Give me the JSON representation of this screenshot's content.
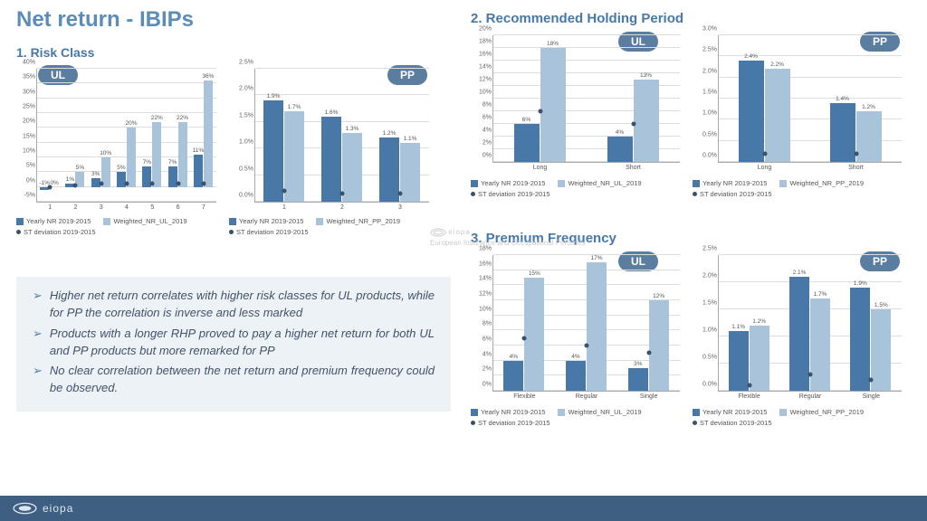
{
  "title": "Net return - IBIPs",
  "sections": {
    "s1": {
      "title": "1. Risk Class"
    },
    "s2": {
      "title": "2. Recommended Holding Period"
    },
    "s3": {
      "title": "3. Premium Frequency"
    }
  },
  "badges": {
    "ul": "UL",
    "pp": "PP"
  },
  "legend_labels": {
    "yearly": "Yearly NR 2019-2015",
    "wul": "Weighted_NR_UL_2019",
    "wpp": "Weighted_NR_PP_2019",
    "std": "ST deviation 2019-2015"
  },
  "colors": {
    "bar1": "#4878a8",
    "bar2": "#a9c3da",
    "dot": "#3a506b",
    "grid": "#dddddd",
    "neg": "#4878a8"
  },
  "chart_risk_ul": {
    "ymin": -5,
    "ymax": 40,
    "ytick": 5,
    "yfmt": "int%",
    "categories": [
      "1",
      "2",
      "3",
      "4",
      "5",
      "6",
      "7"
    ],
    "series1": [
      -1,
      1,
      3,
      5,
      7,
      7,
      11
    ],
    "series2": [
      0,
      5,
      10,
      20,
      22,
      22,
      36
    ],
    "stdev": [
      0,
      0.5,
      1,
      1,
      1,
      1,
      1
    ],
    "labels1": [
      "-1%",
      "1%",
      "3%",
      "5%",
      "7%",
      "7%",
      "11%"
    ],
    "labels2": [
      "0%",
      "5%",
      "10%",
      "20%",
      "22%",
      "22%",
      "36%"
    ]
  },
  "chart_risk_pp": {
    "ymin": 0,
    "ymax": 2.5,
    "ytick": 0.5,
    "yfmt": "dec%",
    "categories": [
      "1",
      "2",
      "3"
    ],
    "series1": [
      1.9,
      1.6,
      1.2
    ],
    "series2": [
      1.7,
      1.3,
      1.1
    ],
    "stdev": [
      0.2,
      0.15,
      0.15
    ],
    "labels1": [
      "1.9%",
      "1.6%",
      "1.2%"
    ],
    "labels2": [
      "1.7%",
      "1.3%",
      "1.1%"
    ]
  },
  "chart_rhp_ul": {
    "ymin": 0,
    "ymax": 20,
    "ytick": 2,
    "yfmt": "int%",
    "categories": [
      "Long",
      "Short"
    ],
    "series1": [
      6,
      4
    ],
    "series2": [
      18,
      13
    ],
    "stdev": [
      8,
      6
    ],
    "labels1": [
      "6%",
      "4%"
    ],
    "labels2": [
      "18%",
      "13%"
    ]
  },
  "chart_rhp_pp": {
    "ymin": 0,
    "ymax": 3.0,
    "ytick": 0.5,
    "yfmt": "dec%",
    "categories": [
      "Long",
      "Short"
    ],
    "series1": [
      2.4,
      1.4
    ],
    "series2": [
      2.2,
      1.2
    ],
    "stdev": [
      0.2,
      0.2
    ],
    "labels1": [
      "2.4%",
      "1.4%"
    ],
    "labels2": [
      "2.2%",
      "1.2%"
    ]
  },
  "chart_pf_ul": {
    "ymin": 0,
    "ymax": 18,
    "ytick": 2,
    "yfmt": "int%",
    "categories": [
      "Flexible",
      "Regular",
      "Single"
    ],
    "series1": [
      4,
      4,
      3
    ],
    "series2": [
      15,
      17,
      12
    ],
    "stdev": [
      7,
      6,
      5
    ],
    "labels1": [
      "4%",
      "4%",
      "3%"
    ],
    "labels2": [
      "15%",
      "17%",
      "12%"
    ]
  },
  "chart_pf_pp": {
    "ymin": 0,
    "ymax": 2.5,
    "ytick": 0.5,
    "yfmt": "dec%",
    "categories": [
      "Flexible",
      "Regular",
      "Single"
    ],
    "series1": [
      1.1,
      2.1,
      1.9
    ],
    "series2": [
      1.2,
      1.7,
      1.5
    ],
    "stdev": [
      0.1,
      0.3,
      0.2
    ],
    "labels1": [
      "1.1%",
      "2.1%",
      "1.9%"
    ],
    "labels2": [
      "1.2%",
      "1.7%",
      "1.5%"
    ]
  },
  "bullets": [
    "Higher net return correlates with higher risk classes for UL products, while for PP the correlation is inverse and less marked",
    "Products with a longer RHP proved to pay a higher net return for both UL and PP products but more remarked for PP",
    "No clear correlation between the net return and premium frequency could be observed."
  ],
  "watermark": {
    "brand": "eiopa",
    "sub": "European Insurance and Occupational Pensions"
  },
  "footer": "eiopa"
}
